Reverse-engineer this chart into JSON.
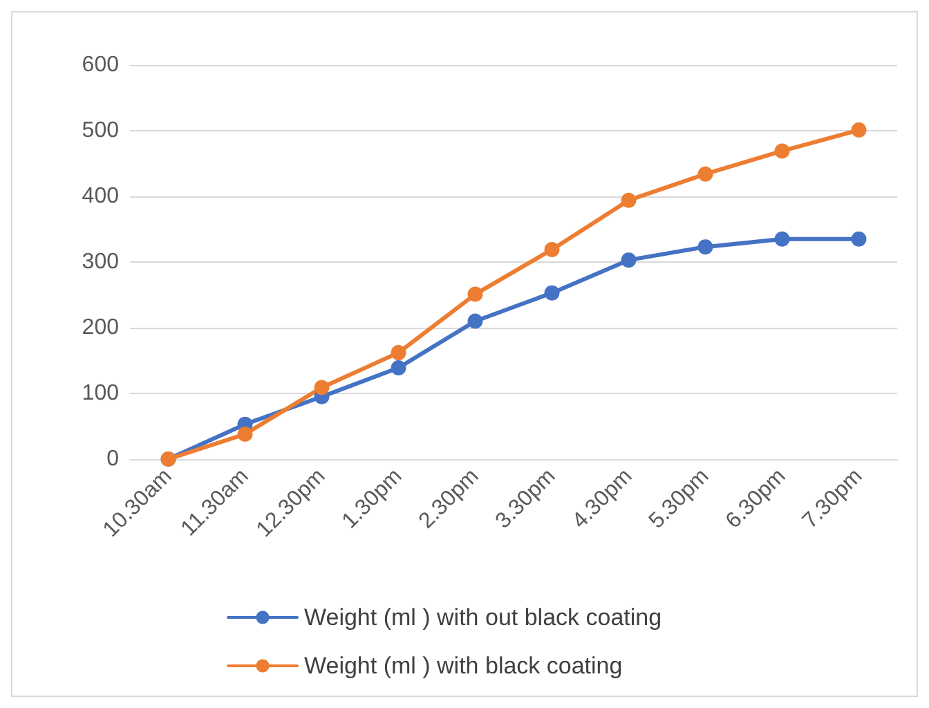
{
  "chart_data": {
    "type": "line",
    "categories": [
      "10.30am",
      "11.30am",
      "12.30pm",
      "1.30pm",
      "2.30pm",
      "3.30pm",
      "4.30pm",
      "5.30pm",
      "6.30pm",
      "7.30pm"
    ],
    "series": [
      {
        "name": "Weight (ml ) with out black coating",
        "color": "#4472c4",
        "values": [
          0,
          53,
          95,
          139,
          210,
          253,
          303,
          323,
          335,
          335
        ]
      },
      {
        "name": "Weight (ml ) with black coating",
        "color": "#ed7d31",
        "values": [
          0,
          38,
          109,
          162,
          251,
          319,
          394,
          434,
          469,
          501
        ]
      }
    ],
    "ylim": [
      0,
      600
    ],
    "yticks": [
      0,
      100,
      200,
      300,
      400,
      500,
      600
    ],
    "grid": "y",
    "legend": "bottom",
    "marker": "circle",
    "line_style": "solid"
  }
}
